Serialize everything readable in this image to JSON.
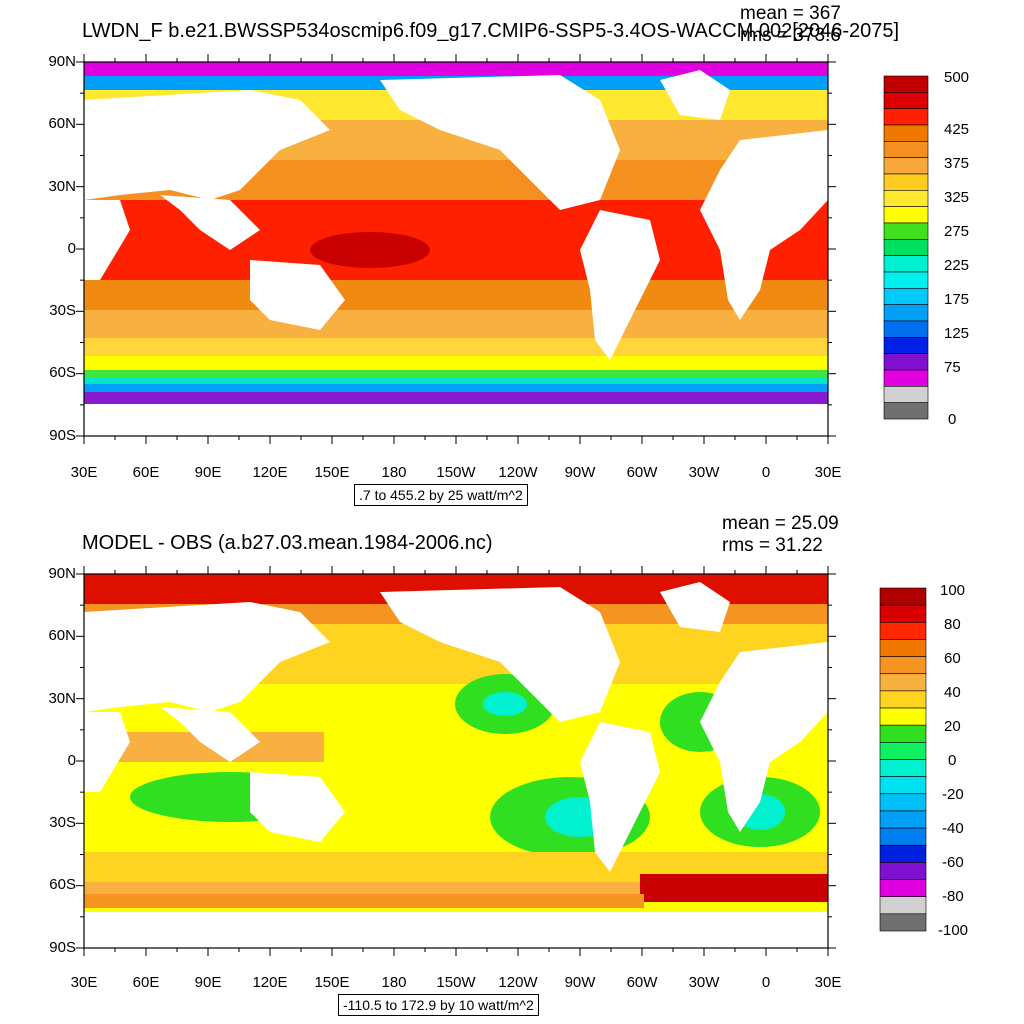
{
  "colors": {
    "ocean_warm_dark": "#c80000",
    "ocean_warm": "#ff2000",
    "ocean_orange": "#f08a10",
    "ocean_yellow": "#ffd53a",
    "ocean_green": "#3ee63e",
    "ocean_cyan": "#00e6c8",
    "ice_magenta": "#e000e0",
    "ice_purple": "#8a1ad0",
    "land": "#ffffff"
  },
  "panels": [
    {
      "title": "LWDN_F b.e21.BWSSP534oscmip6.f09_g17.CMIP6-SSP5-3.4OS-WACCM.002[2046-2075]",
      "stat_mean": "mean = 367",
      "stat_rms": "rms = 373.6",
      "infobox": ".7 to 455.2 by 25 watt/m^2",
      "lat_labels": [
        "90N",
        "60N",
        "30N",
        "0",
        "30S",
        "60S",
        "90S"
      ],
      "lon_labels": [
        "30E",
        "60E",
        "90E",
        "120E",
        "150E",
        "180",
        "150W",
        "120W",
        "90W",
        "60W",
        "30W",
        "0",
        "30E"
      ],
      "colorbar": {
        "colors": [
          "#c00000",
          "#dd0000",
          "#ff2000",
          "#f07800",
          "#f59020",
          "#f8a838",
          "#ffcc20",
          "#ffe830",
          "#ffff00",
          "#40e020",
          "#00e060",
          "#00f0d0",
          "#00f0f0",
          "#00c8f8",
          "#00a0f8",
          "#0070f0",
          "#0020e8",
          "#8010d0",
          "#e000e0",
          "#d0d0d0",
          "#707070"
        ],
        "labels": [
          "500",
          "425",
          "375",
          "325",
          "275",
          "225",
          "175",
          "125",
          "75",
          "0"
        ]
      },
      "chart_data": {
        "type": "heatmap",
        "variable": "LWDN_F",
        "units": "watt/m^2",
        "mean": 367,
        "rms": 373.6,
        "contour_min": 0.7,
        "contour_max": 455.2,
        "contour_interval": 25,
        "colorbar_levels": [
          0,
          75,
          125,
          175,
          225,
          275,
          325,
          375,
          425,
          500
        ]
      }
    },
    {
      "title": "MODEL - OBS (a.b27.03.mean.1984-2006.nc)",
      "stat_mean": "mean = 25.09",
      "stat_rms": "rms = 31.22",
      "infobox": "-110.5 to 172.9 by 10 watt/m^2",
      "lat_labels": [
        "90N",
        "60N",
        "30N",
        "0",
        "30S",
        "60S",
        "90S"
      ],
      "lon_labels": [
        "30E",
        "60E",
        "90E",
        "120E",
        "150E",
        "180",
        "150W",
        "120W",
        "90W",
        "60W",
        "30W",
        "0",
        "30E"
      ],
      "colorbar": {
        "colors": [
          "#b00000",
          "#d80000",
          "#ff2800",
          "#f07800",
          "#f59420",
          "#f8b040",
          "#ffd420",
          "#ffff00",
          "#30e020",
          "#10f060",
          "#00f0d0",
          "#00e0f0",
          "#00c0f8",
          "#00a0f8",
          "#0080f0",
          "#0020e0",
          "#8010d0",
          "#e000e0",
          "#d0d0d0",
          "#707070"
        ],
        "labels": [
          "100",
          "80",
          "60",
          "40",
          "20",
          "0",
          "-20",
          "-40",
          "-60",
          "-80",
          "-100"
        ]
      },
      "chart_data": {
        "type": "heatmap",
        "variable": "MODEL - OBS",
        "units": "watt/m^2",
        "mean": 25.09,
        "rms": 31.22,
        "contour_min": -110.5,
        "contour_max": 172.9,
        "contour_interval": 10,
        "colorbar_levels": [
          -100,
          -80,
          -60,
          -40,
          -20,
          0,
          20,
          40,
          60,
          80,
          100
        ]
      }
    }
  ]
}
